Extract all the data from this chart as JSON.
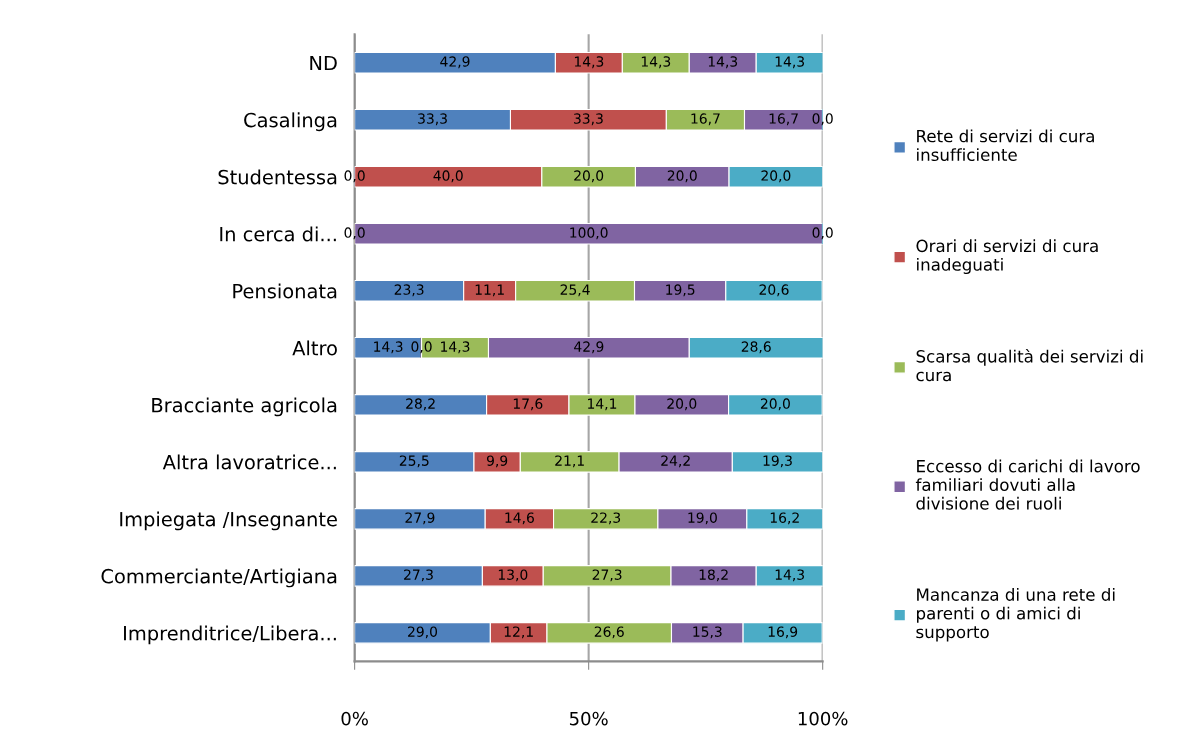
{
  "chart_data": {
    "type": "bar",
    "orientation": "horizontal",
    "stacked": true,
    "categories": [
      "ND",
      "Casalinga",
      "Studentessa",
      "In cerca di...",
      "Pensionata",
      "Altro",
      "Bracciante agricola",
      "Altra lavoratrice...",
      "Impiegata /Insegnante",
      "Commerciante/Artigiana",
      "Imprenditrice/Libera..."
    ],
    "series": [
      {
        "name": "Rete di servizi di cura\ninsufficiente",
        "color": "#4f81bd",
        "values": [
          42.9,
          33.3,
          0.0,
          0.0,
          23.3,
          14.3,
          28.2,
          25.5,
          27.9,
          27.3,
          29.0
        ],
        "value_labels": [
          "42,9",
          "33,3",
          "0,0",
          "0,0",
          "23,3",
          "14,3",
          "28,2",
          "25,5",
          "27,9",
          "27,3",
          "29,0"
        ]
      },
      {
        "name": "Orari di servizi di cura\ninadeguati",
        "color": "#c0504d",
        "values": [
          14.3,
          33.3,
          40.0,
          0.0,
          11.1,
          0.0,
          17.6,
          9.9,
          14.6,
          13.0,
          12.1
        ],
        "value_labels": [
          "14,3",
          "33,3",
          "40,0",
          null,
          "11,1",
          "0,0",
          "17,6",
          "9,9",
          "14,6",
          "13,0",
          "12,1"
        ]
      },
      {
        "name": "Scarsa qualità dei servizi di\ncura",
        "color": "#9bbb59",
        "values": [
          14.3,
          16.7,
          20.0,
          0.0,
          25.4,
          14.3,
          14.1,
          21.1,
          22.3,
          27.3,
          26.6
        ],
        "value_labels": [
          "14,3",
          "16,7",
          "20,0",
          null,
          "25,4",
          "14,3",
          "14,1",
          "21,1",
          "22,3",
          "27,3",
          "26,6"
        ]
      },
      {
        "name": "Eccesso di carichi di lavoro\nfamiliari dovuti alla\ndivisione dei ruoli",
        "color": "#8064a2",
        "values": [
          14.3,
          16.7,
          20.0,
          100.0,
          19.5,
          42.9,
          20.0,
          24.2,
          19.0,
          18.2,
          15.3
        ],
        "value_labels": [
          "14,3",
          "16,7",
          "20,0",
          "100,0",
          "19,5",
          "42,9",
          "20,0",
          "24,2",
          "19,0",
          "18,2",
          "15,3"
        ]
      },
      {
        "name": "Mancanza di una rete di\nparenti o di amici di\nsupporto",
        "color": "#4bacc6",
        "values": [
          14.3,
          0.0,
          20.0,
          0.0,
          20.6,
          28.6,
          20.0,
          19.3,
          16.2,
          14.3,
          16.9
        ],
        "value_labels": [
          "14,3",
          "0,0",
          "20,0",
          "0,0",
          "20,6",
          "28,6",
          "20,0",
          "19,3",
          "16,2",
          "14,3",
          "16,9"
        ]
      }
    ],
    "xlim": [
      0,
      100
    ],
    "xticks": [
      {
        "value": 0,
        "label": "0%"
      },
      {
        "value": 50,
        "label": "50%"
      },
      {
        "value": 100,
        "label": "100%"
      }
    ],
    "grid": "x",
    "legend": "right"
  }
}
